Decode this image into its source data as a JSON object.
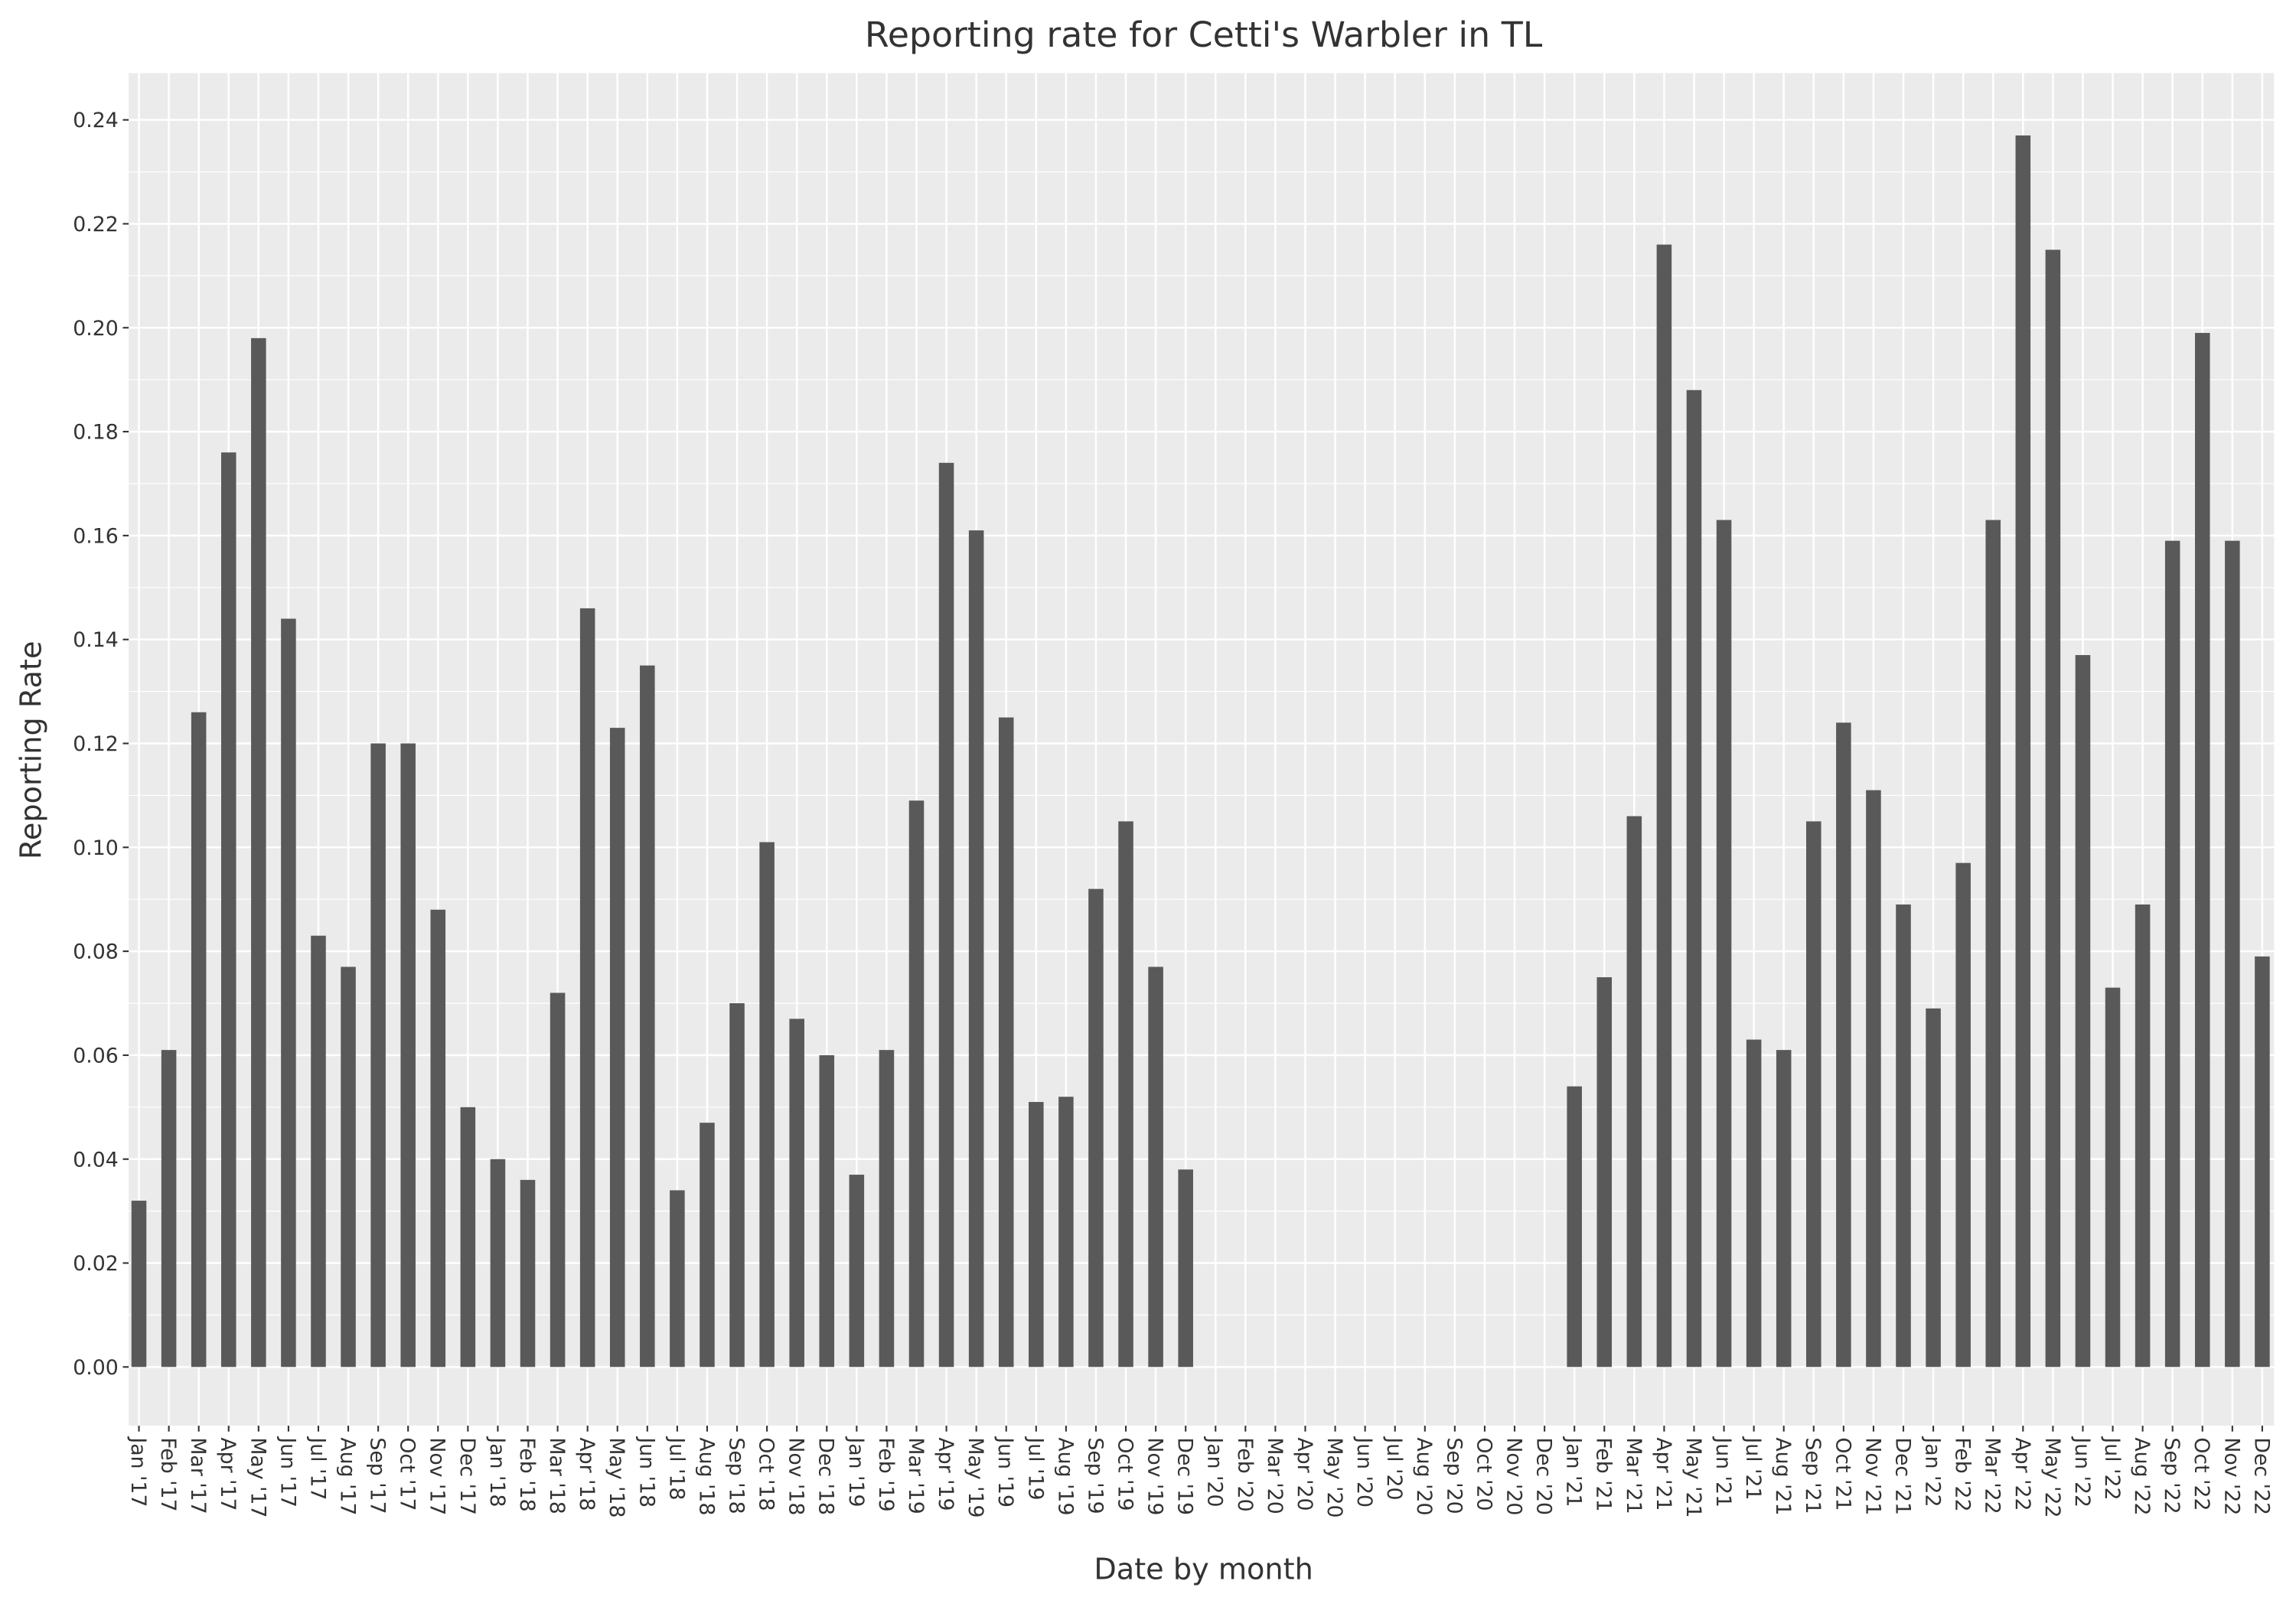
{
  "chart_data": {
    "type": "bar",
    "title": "Reporting rate for Cetti's Warbler in TL",
    "x_label": "Date by month",
    "y_label": "Reporting Rate",
    "color": "#595959",
    "grid": true,
    "categories": [
      "Jan '17",
      "Feb '17",
      "Mar '17",
      "Apr '17",
      "May '17",
      "Jun '17",
      "Jul '17",
      "Aug '17",
      "Sep '17",
      "Oct '17",
      "Nov '17",
      "Dec '17",
      "Jan '18",
      "Feb '18",
      "Mar '18",
      "Apr '18",
      "May '18",
      "Jun '18",
      "Jul '18",
      "Aug '18",
      "Sep '18",
      "Oct '18",
      "Nov '18",
      "Dec '18",
      "Jan '19",
      "Feb '19",
      "Mar '19",
      "Apr '19",
      "May '19",
      "Jun '19",
      "Jul '19",
      "Aug '19",
      "Sep '19",
      "Oct '19",
      "Nov '19",
      "Dec '19",
      "Jan '20",
      "Feb '20",
      "Mar '20",
      "Apr '20",
      "May '20",
      "Jun '20",
      "Jul '20",
      "Aug '20",
      "Sep '20",
      "Oct '20",
      "Nov '20",
      "Dec '20",
      "Jan '21",
      "Feb '21",
      "Mar '21",
      "Apr '21",
      "May '21",
      "Jun '21",
      "Jul '21",
      "Aug '21",
      "Sep '21",
      "Oct '21",
      "Nov '21",
      "Dec '21",
      "Jan '22",
      "Feb '22",
      "Mar '22",
      "Apr '22",
      "May '22",
      "Jun '22",
      "Jul '22",
      "Aug '22",
      "Sep '22",
      "Oct '22",
      "Nov '22",
      "Dec '22"
    ],
    "values": [
      0.032,
      0.061,
      0.126,
      0.176,
      0.198,
      0.144,
      0.083,
      0.077,
      0.12,
      0.12,
      0.088,
      0.05,
      0.04,
      0.036,
      0.072,
      0.146,
      0.123,
      0.135,
      0.034,
      0.047,
      0.07,
      0.101,
      0.067,
      0.06,
      0.037,
      0.061,
      0.109,
      0.174,
      0.161,
      0.125,
      0.051,
      0.052,
      0.092,
      0.105,
      0.077,
      0.038,
      null,
      null,
      null,
      null,
      null,
      null,
      null,
      null,
      null,
      null,
      null,
      null,
      0.054,
      0.075,
      0.106,
      0.216,
      0.188,
      0.163,
      0.063,
      0.061,
      0.105,
      0.124,
      0.111,
      0.089,
      0.069,
      0.097,
      0.163,
      0.237,
      0.215,
      0.137,
      0.073,
      0.089,
      0.159,
      0.199,
      0.159,
      0.079
    ],
    "ylim": [
      -0.0113,
      0.249
    ],
    "yticks": [
      {
        "value": 0,
        "label": "0.00"
      },
      {
        "value": 0.02,
        "label": "0.02"
      },
      {
        "value": 0.04,
        "label": "0.04"
      },
      {
        "value": 0.06,
        "label": "0.06"
      },
      {
        "value": 0.08,
        "label": "0.08"
      },
      {
        "value": 0.1,
        "label": "0.10"
      },
      {
        "value": 0.12,
        "label": "0.12"
      },
      {
        "value": 0.14,
        "label": "0.14"
      },
      {
        "value": 0.16,
        "label": "0.16"
      },
      {
        "value": 0.18,
        "label": "0.18"
      },
      {
        "value": 0.2,
        "label": "0.20"
      },
      {
        "value": 0.22,
        "label": "0.22"
      },
      {
        "value": 0.24,
        "label": "0.24"
      }
    ]
  }
}
